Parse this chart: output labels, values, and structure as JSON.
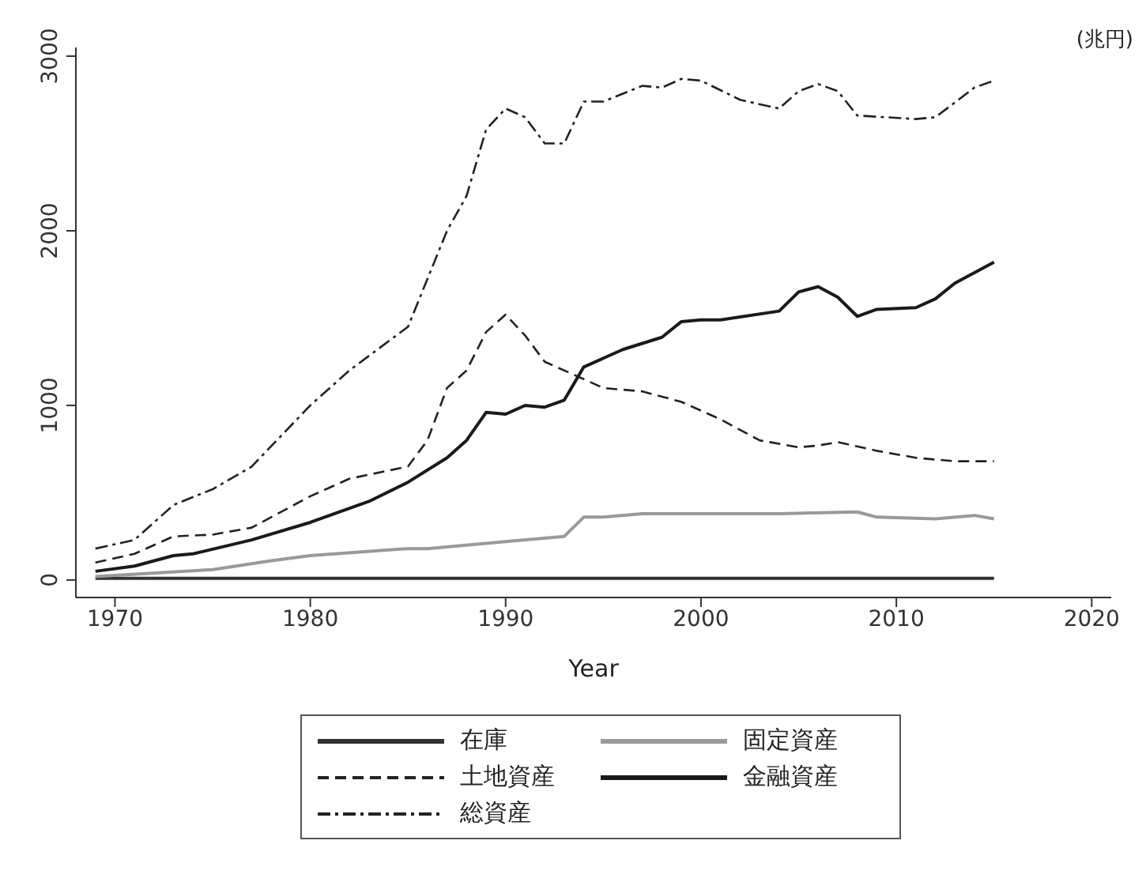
{
  "chart_data": {
    "type": "line",
    "xlabel": "Year",
    "annotations": [
      "(兆円)"
    ],
    "xlim": [
      1968,
      2021
    ],
    "xticks": [
      1970,
      1980,
      1990,
      2000,
      2010,
      2020
    ],
    "ylim": [
      -100,
      3050
    ],
    "yticks": [
      0,
      1000,
      2000,
      3000
    ],
    "grid": false,
    "legend": "bottom",
    "marker": "none",
    "series": [
      {
        "name": "在庫",
        "color": "#333333",
        "line_style": "solid",
        "x": [
          1969,
          2015
        ],
        "values": [
          10,
          10
        ]
      },
      {
        "name": "固定資産",
        "color": "#999999",
        "line_style": "solid",
        "x": [
          1969,
          1975,
          1978,
          1980,
          1985,
          1986,
          1990,
          1993,
          1994,
          1995,
          1997,
          2000,
          2004,
          2008,
          2009,
          2012,
          2014,
          2015
        ],
        "values": [
          20,
          60,
          110,
          140,
          180,
          180,
          220,
          250,
          360,
          360,
          380,
          380,
          380,
          390,
          360,
          350,
          370,
          350
        ]
      },
      {
        "name": "土地資産",
        "color": "#222222",
        "line_style": "dashed",
        "x": [
          1969,
          1971,
          1973,
          1975,
          1977,
          1980,
          1982,
          1985,
          1986,
          1987,
          1988,
          1989,
          1990,
          1991,
          1992,
          1994,
          1995,
          1997,
          1999,
          2001,
          2003,
          2005,
          2006,
          2007,
          2009,
          2011,
          2013,
          2015
        ],
        "values": [
          100,
          150,
          250,
          260,
          300,
          480,
          580,
          650,
          800,
          1100,
          1200,
          1420,
          1520,
          1400,
          1250,
          1150,
          1100,
          1080,
          1020,
          920,
          800,
          760,
          770,
          790,
          740,
          700,
          680,
          680
        ]
      },
      {
        "name": "金融資産",
        "color": "#1a1a1a",
        "line_style": "solid",
        "x": [
          1969,
          1971,
          1973,
          1974,
          1977,
          1980,
          1983,
          1985,
          1987,
          1988,
          1989,
          1990,
          1991,
          1992,
          1993,
          1994,
          1995,
          1996,
          1998,
          1999,
          2000,
          2001,
          2004,
          2005,
          2006,
          2007,
          2008,
          2009,
          2011,
          2012,
          2013,
          2015
        ],
        "values": [
          50,
          80,
          140,
          150,
          230,
          330,
          450,
          560,
          700,
          800,
          960,
          950,
          1000,
          990,
          1030,
          1220,
          1270,
          1320,
          1390,
          1480,
          1490,
          1490,
          1540,
          1650,
          1680,
          1620,
          1510,
          1550,
          1560,
          1610,
          1700,
          1820
        ]
      },
      {
        "name": "総資産",
        "color": "#222222",
        "line_style": "dashdot",
        "x": [
          1969,
          1971,
          1973,
          1975,
          1977,
          1980,
          1982,
          1985,
          1987,
          1988,
          1989,
          1990,
          1991,
          1992,
          1993,
          1994,
          1995,
          1997,
          1998,
          1999,
          2000,
          2002,
          2004,
          2005,
          2006,
          2007,
          2008,
          2011,
          2012,
          2014,
          2015
        ],
        "values": [
          180,
          230,
          430,
          520,
          650,
          1000,
          1200,
          1450,
          2000,
          2200,
          2580,
          2700,
          2650,
          2500,
          2500,
          2740,
          2740,
          2830,
          2820,
          2870,
          2860,
          2750,
          2700,
          2800,
          2840,
          2800,
          2660,
          2640,
          2650,
          2820,
          2860
        ]
      }
    ]
  }
}
